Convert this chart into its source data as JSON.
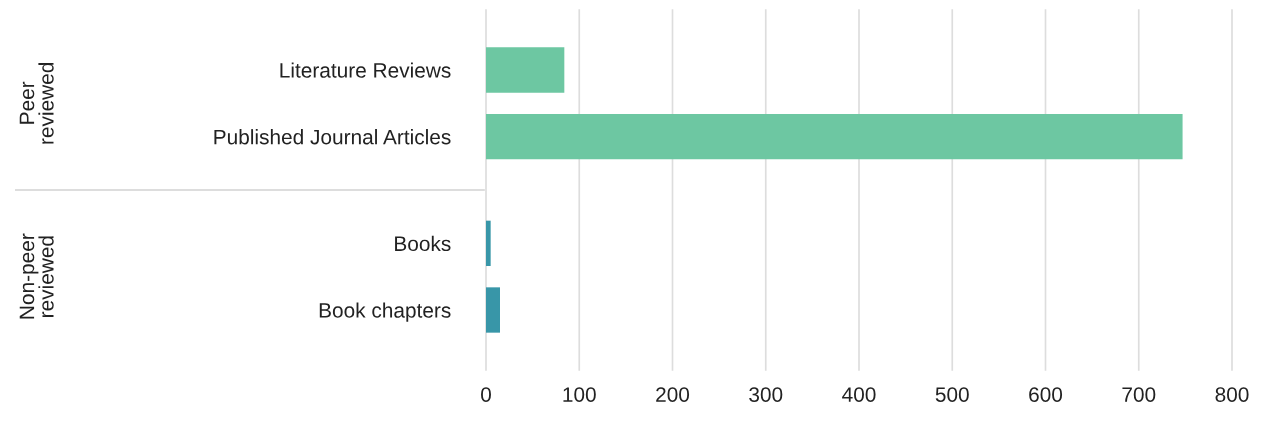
{
  "chart_data": {
    "type": "bar",
    "orientation": "horizontal",
    "categories": [
      "Literature Reviews",
      "Published Journal Articles",
      "Books",
      "Book chapters"
    ],
    "values": [
      84,
      747,
      5,
      15
    ],
    "colors": [
      "#6dc7a2",
      "#6dc7a2",
      "#3896a8",
      "#3896a8"
    ],
    "xlim": [
      0,
      800
    ],
    "xticks": [
      0,
      100,
      200,
      300,
      400,
      500,
      600,
      700,
      800
    ],
    "grid": "x",
    "annotations": [
      "Peer\nreviewed",
      "Non-peer\nreviewed"
    ]
  }
}
